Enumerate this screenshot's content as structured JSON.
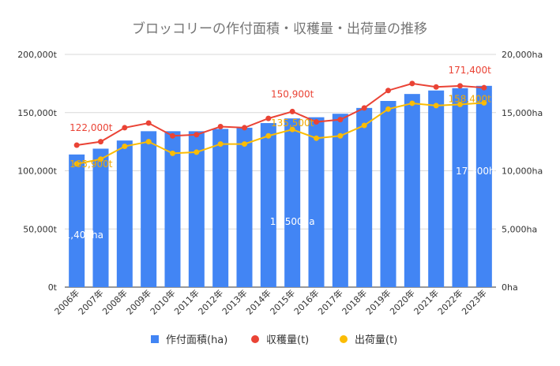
{
  "chart_data": {
    "type": "bar",
    "title": "ブロッコリーの作付面積・収穫量・出荷量の推移",
    "categories": [
      "2006年",
      "2007年",
      "2008年",
      "2009年",
      "2010年",
      "2011年",
      "2012年",
      "2013年",
      "2014年",
      "2015年",
      "2016年",
      "2017年",
      "2018年",
      "2019年",
      "2020年",
      "2021年",
      "2022年",
      "2023年"
    ],
    "y_left": {
      "range": [
        0,
        200000
      ],
      "ticks": [
        0,
        50000,
        100000,
        150000,
        200000
      ],
      "tick_labels": [
        "0t",
        "50,000t",
        "100,000t",
        "150,000t",
        "200,000t"
      ]
    },
    "y_right": {
      "range": [
        0,
        20000
      ],
      "ticks": [
        0,
        5000,
        10000,
        15000,
        20000
      ],
      "tick_labels": [
        "0ha",
        "5,000ha",
        "10,000ha",
        "15,000ha",
        "20,000ha"
      ]
    },
    "grid": true,
    "legend_position": "bottom",
    "series": [
      {
        "name": "作付面積(ha)",
        "type": "bar",
        "axis": "right",
        "color": "#4285f4",
        "values": [
          11400,
          11900,
          12600,
          13400,
          13400,
          13400,
          13600,
          13700,
          14100,
          14500,
          14600,
          14900,
          15400,
          16000,
          16600,
          16900,
          17100,
          17300
        ]
      },
      {
        "name": "収穫量(t)",
        "type": "line",
        "axis": "left",
        "color": "#ea4335",
        "values": [
          122000,
          125000,
          137000,
          141000,
          130000,
          131000,
          138000,
          137000,
          145000,
          150900,
          142000,
          144000,
          154000,
          169000,
          175000,
          172000,
          173000,
          171400
        ]
      },
      {
        "name": "出荷量(t)",
        "type": "line",
        "axis": "left",
        "color": "#fbbc04",
        "values": [
          105900,
          110000,
          121000,
          125000,
          115000,
          116000,
          123000,
          123000,
          130000,
          135500,
          128000,
          130000,
          139000,
          153000,
          158000,
          156000,
          157000,
          158400
        ]
      }
    ],
    "data_labels": [
      {
        "series": 0,
        "index": 0,
        "text": "11,400ha"
      },
      {
        "series": 0,
        "index": 9,
        "text": "14,500ha"
      },
      {
        "series": 0,
        "index": 17,
        "text": "17,300ha"
      },
      {
        "series": 1,
        "index": 0,
        "text": "122,000t"
      },
      {
        "series": 1,
        "index": 9,
        "text": "150,900t"
      },
      {
        "series": 1,
        "index": 17,
        "text": "171,400t"
      },
      {
        "series": 2,
        "index": 0,
        "text": "105,900t"
      },
      {
        "series": 2,
        "index": 9,
        "text": "135,500t"
      },
      {
        "series": 2,
        "index": 17,
        "text": "158,400t"
      }
    ]
  }
}
